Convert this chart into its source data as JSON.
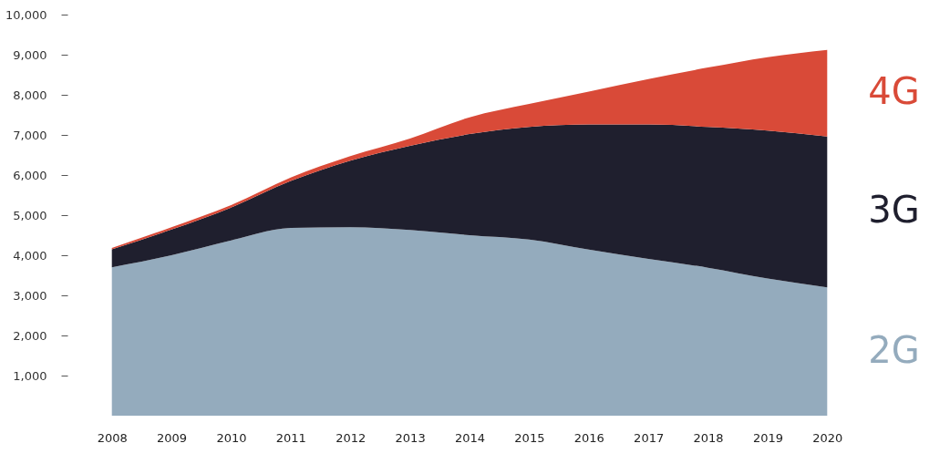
{
  "chart_data": {
    "type": "area",
    "stacked": true,
    "categories": [
      "2008",
      "2009",
      "2010",
      "2011",
      "2012",
      "2013",
      "2014",
      "2015",
      "2016",
      "2017",
      "2018",
      "2019",
      "2020"
    ],
    "ylim": [
      0,
      10000
    ],
    "yticks": [
      {
        "value": 1000,
        "label": "1,000"
      },
      {
        "value": 2000,
        "label": "2,000"
      },
      {
        "value": 3000,
        "label": "3,000"
      },
      {
        "value": 4000,
        "label": "4,000"
      },
      {
        "value": 5000,
        "label": "5,000"
      },
      {
        "value": 6000,
        "label": "6,000"
      },
      {
        "value": 7000,
        "label": "7,000"
      },
      {
        "value": 8000,
        "label": "8,000"
      },
      {
        "value": 9000,
        "label": "9,000"
      },
      {
        "value": 10000,
        "label": "10,000"
      }
    ],
    "grid": false,
    "series": [
      {
        "name": "2G",
        "color": "#94abbd",
        "values": [
          3700,
          4000,
          4370,
          4680,
          4700,
          4630,
          4500,
          4390,
          4140,
          3910,
          3690,
          3420,
          3200
        ]
      },
      {
        "name": "3G",
        "color": "#1f1f2e",
        "values": [
          450,
          640,
          820,
          1170,
          1660,
          2100,
          2520,
          2810,
          3120,
          3350,
          3510,
          3690,
          3760
        ]
      },
      {
        "name": "4G",
        "color": "#d94a38",
        "values": [
          30,
          60,
          60,
          90,
          110,
          180,
          420,
          570,
          820,
          1130,
          1480,
          1830,
          2160
        ]
      }
    ]
  }
}
